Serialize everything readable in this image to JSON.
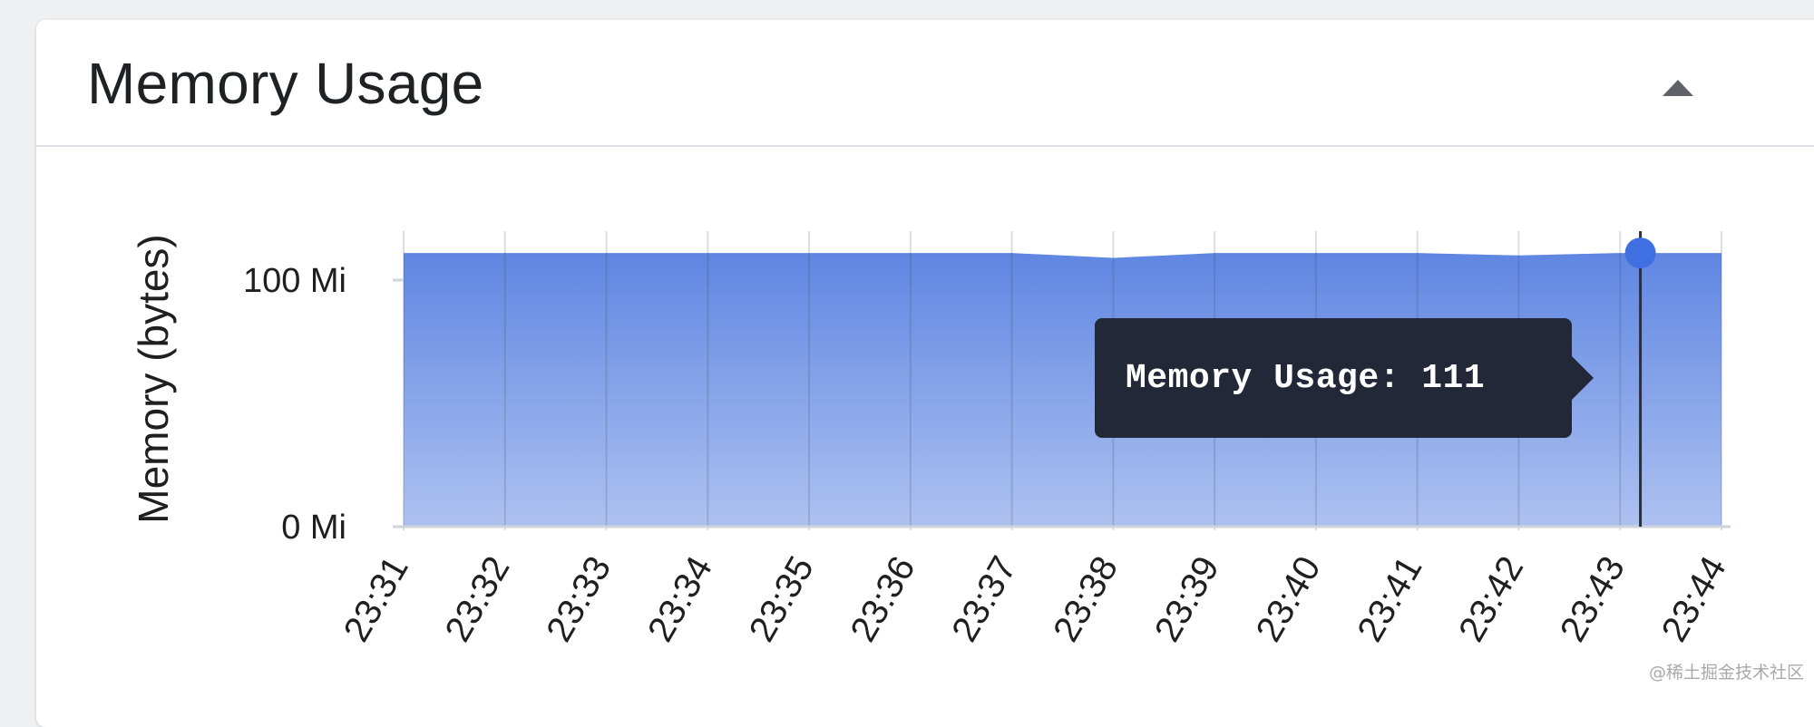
{
  "panel": {
    "title": "Memory Usage",
    "collapse_icon": "caret-up-icon"
  },
  "tooltip": {
    "text": "Memory Usage: 111"
  },
  "watermark": "@稀土掘金技术社区",
  "colors": {
    "area_top": "#5f86e2",
    "area_bottom": "#aec2f1",
    "point": "#3f6fe0",
    "cursor_line": "#2a2f3a",
    "tooltip_bg": "#222838",
    "grid": "#cfd3da"
  },
  "chart_data": {
    "type": "area",
    "title": "",
    "xlabel": "",
    "ylabel": "Memory (bytes)",
    "x_ticks": [
      "23:31",
      "23:32",
      "23:33",
      "23:34",
      "23:35",
      "23:36",
      "23:37",
      "23:38",
      "23:39",
      "23:40",
      "23:41",
      "23:42",
      "23:43",
      "23:44"
    ],
    "y_ticks": [
      {
        "value": 0,
        "label": "0 Mi"
      },
      {
        "value": 100,
        "label": "100 Mi"
      }
    ],
    "ylim": [
      0,
      111
    ],
    "series": [
      {
        "name": "Memory Usage",
        "x": [
          "23:31",
          "23:32",
          "23:33",
          "23:34",
          "23:35",
          "23:36",
          "23:37",
          "23:38",
          "23:39",
          "23:40",
          "23:41",
          "23:42",
          "23:43",
          "23:44"
        ],
        "values": [
          111,
          111,
          111,
          111,
          111,
          111,
          111,
          109,
          111,
          111,
          111,
          110,
          111,
          111
        ]
      }
    ],
    "highlight": {
      "x": "23:43",
      "value": 111
    },
    "grid": true
  }
}
